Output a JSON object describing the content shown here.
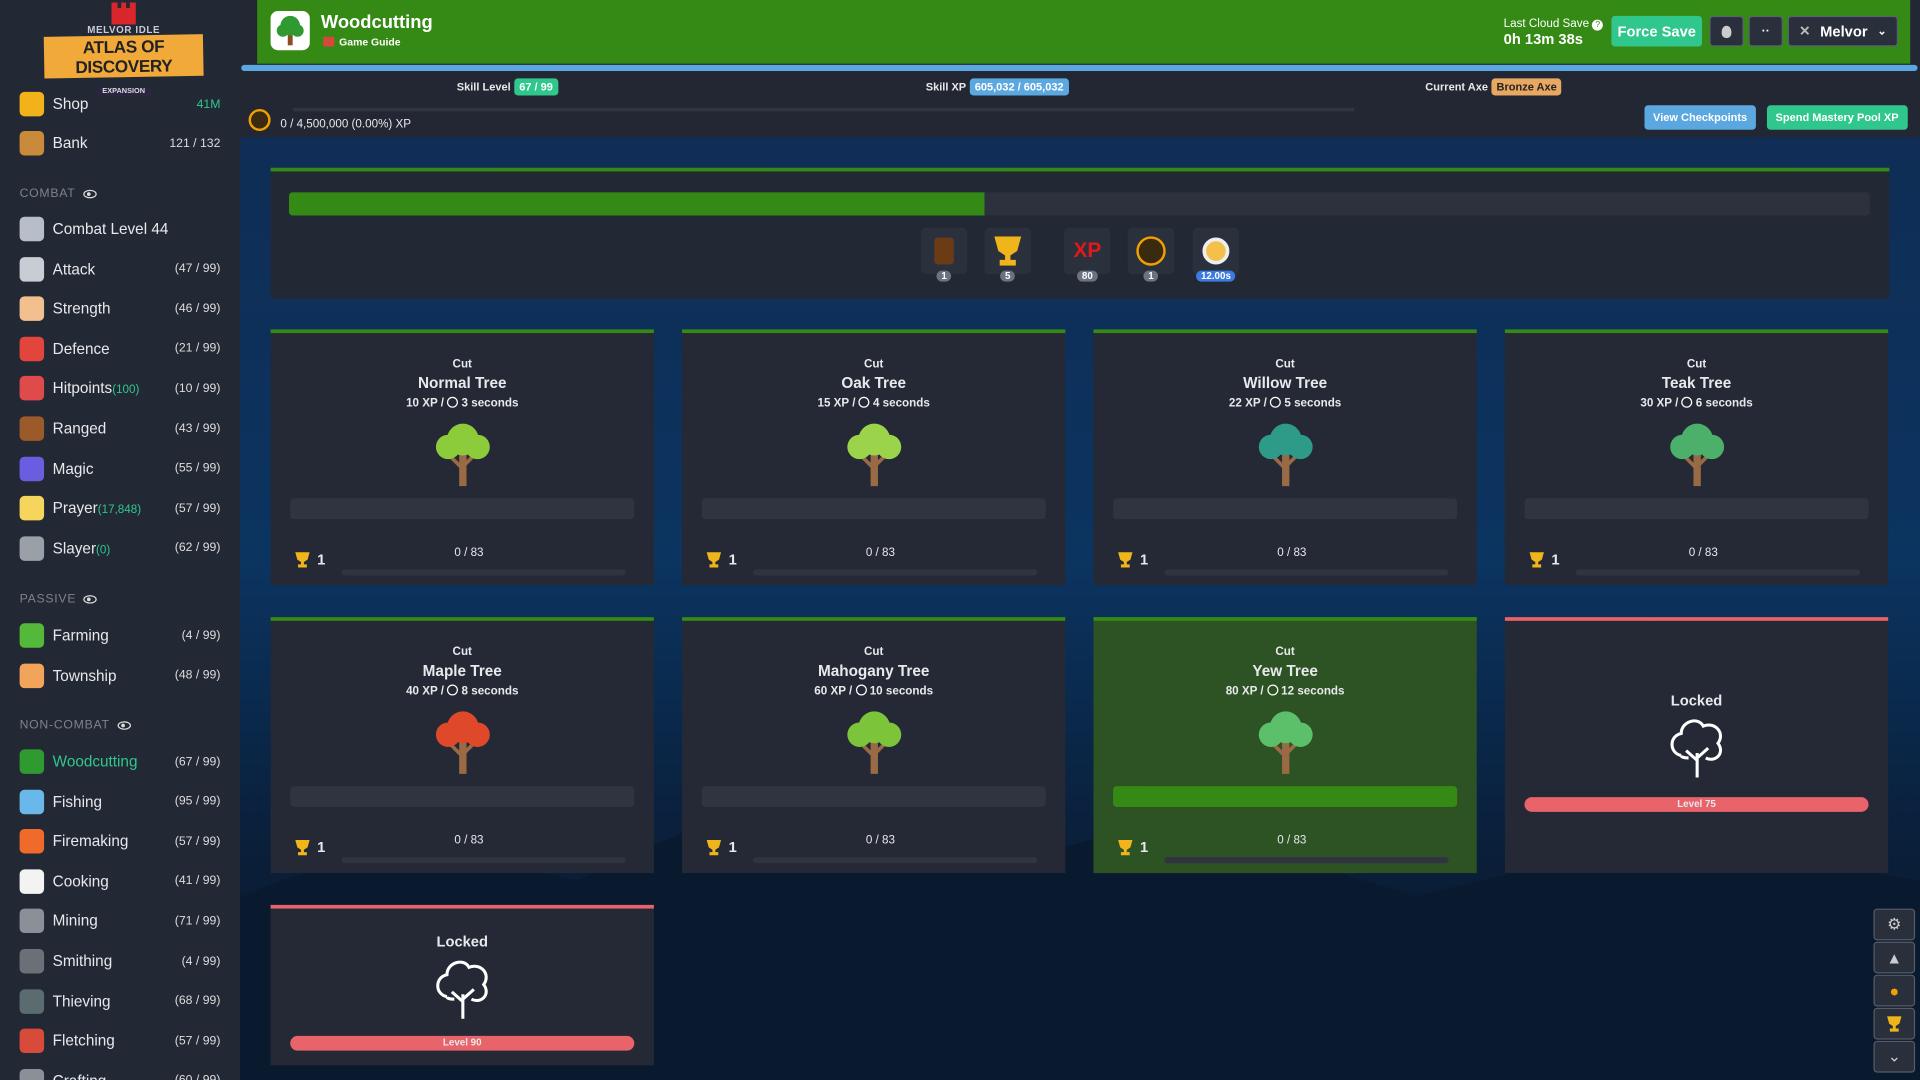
{
  "logo": {
    "top": "MELVOR IDLE",
    "main": "ATLAS OF DISCOVERY",
    "sub": "EXPANSION"
  },
  "sidebar": {
    "top_items": [
      {
        "label": "Shop",
        "value": "41M",
        "icon": "coin-icon",
        "color": "#f3b21a"
      },
      {
        "label": "Bank",
        "value": "121 / 132",
        "icon": "chest-icon",
        "color": "#c98a3b"
      }
    ],
    "sections": [
      {
        "title": "COMBAT",
        "items": [
          {
            "label": "Combat Level 44",
            "level": "",
            "icon": "crossed-swords-icon",
            "color": "#b8bec8"
          },
          {
            "label": "Attack",
            "level": "(47 / 99)",
            "icon": "sword-icon",
            "color": "#c8ccd4"
          },
          {
            "label": "Strength",
            "level": "(46 / 99)",
            "icon": "flexed-arm-icon",
            "color": "#f2c08f"
          },
          {
            "label": "Defence",
            "level": "(21 / 99)",
            "icon": "shield-icon",
            "color": "#e2453b"
          },
          {
            "label": "Hitpoints",
            "extra": "(100)",
            "level": "(10 / 99)",
            "icon": "heart-icon",
            "color": "#df4a4a"
          },
          {
            "label": "Ranged",
            "level": "(43 / 99)",
            "icon": "bow-icon",
            "color": "#9a5a2a"
          },
          {
            "label": "Magic",
            "level": "(55 / 99)",
            "icon": "wizard-hat-icon",
            "color": "#6a5ee0"
          },
          {
            "label": "Prayer",
            "extra": "(17,848)",
            "level": "(57 / 99)",
            "icon": "sparkle-icon",
            "color": "#f6d55c"
          },
          {
            "label": "Slayer",
            "extra": "(0)",
            "level": "(62 / 99)",
            "icon": "sword-in-stone-icon",
            "color": "#9aa0a8"
          }
        ]
      },
      {
        "title": "PASSIVE",
        "items": [
          {
            "label": "Farming",
            "level": "(4 / 99)",
            "icon": "sprout-icon",
            "color": "#54b93a"
          },
          {
            "label": "Township",
            "level": "(48 / 99)",
            "icon": "house-hands-icon",
            "color": "#f2a55a"
          }
        ]
      },
      {
        "title": "NON-COMBAT",
        "items": [
          {
            "label": "Woodcutting",
            "level": "(67 / 99)",
            "icon": "tree-icon",
            "color": "#2f9a2f",
            "active": true
          },
          {
            "label": "Fishing",
            "level": "(95 / 99)",
            "icon": "fish-icon",
            "color": "#6ab8ea"
          },
          {
            "label": "Firemaking",
            "level": "(57 / 99)",
            "icon": "campfire-icon",
            "color": "#f06a2a"
          },
          {
            "label": "Cooking",
            "level": "(41 / 99)",
            "icon": "chef-hat-icon",
            "color": "#f3f3f3"
          },
          {
            "label": "Mining",
            "level": "(71 / 99)",
            "icon": "pickaxe-icon",
            "color": "#8a8f98"
          },
          {
            "label": "Smithing",
            "level": "(4 / 99)",
            "icon": "anvil-icon",
            "color": "#6b7078"
          },
          {
            "label": "Thieving",
            "level": "(68 / 99)",
            "icon": "thief-icon",
            "color": "#5a6c70"
          },
          {
            "label": "Fletching",
            "level": "(57 / 99)",
            "icon": "arrows-icon",
            "color": "#d84a3a"
          },
          {
            "label": "Crafting",
            "level": "(60 / 99)",
            "icon": "hammer-icon",
            "color": "#8a8f98"
          }
        ]
      }
    ]
  },
  "header": {
    "title": "Woodcutting",
    "guide": "Game Guide",
    "cloud_label": "Last Cloud Save",
    "cloud_time": "0h 13m 38s",
    "force_save": "Force Save",
    "user": "Melvor",
    "colors": {
      "header": "#348a14",
      "accent": "#30c78d"
    }
  },
  "stats": {
    "skill_level_label": "Skill Level",
    "skill_level": "67 / 99",
    "skill_xp_label": "Skill XP",
    "skill_xp": "605,032 / 605,032",
    "axe_label": "Current Axe",
    "axe": "Bronze Axe",
    "mastery_pool": "0 / 4,500,000 (0.00%) XP",
    "view_checkpoints": "View Checkpoints",
    "spend_mastery": "Spend Mastery Pool XP"
  },
  "action_panel": {
    "progress_percent": 44,
    "icons": [
      {
        "icon": "log-icon",
        "value": "1"
      },
      {
        "icon": "trophy-icon",
        "value": "5"
      },
      {
        "icon": "xp-icon",
        "label": "XP",
        "value": "80"
      },
      {
        "icon": "mastery-icon",
        "value": "1"
      },
      {
        "icon": "stopwatch-icon",
        "value": "12.00s"
      }
    ]
  },
  "trees": [
    {
      "verb": "Cut",
      "name": "Normal Tree",
      "xp": "10 XP /",
      "time": "3 seconds",
      "mastery": "1",
      "progress": "0 / 83",
      "color": "#8ccb3a"
    },
    {
      "verb": "Cut",
      "name": "Oak Tree",
      "xp": "15 XP /",
      "time": "4 seconds",
      "mastery": "1",
      "progress": "0 / 83",
      "color": "#9bd44a"
    },
    {
      "verb": "Cut",
      "name": "Willow Tree",
      "xp": "22 XP /",
      "time": "5 seconds",
      "mastery": "1",
      "progress": "0 / 83",
      "color": "#2e9a88"
    },
    {
      "verb": "Cut",
      "name": "Teak Tree",
      "xp": "30 XP /",
      "time": "6 seconds",
      "mastery": "1",
      "progress": "0 / 83",
      "color": "#4caf6a"
    },
    {
      "verb": "Cut",
      "name": "Maple Tree",
      "xp": "40 XP /",
      "time": "8 seconds",
      "mastery": "1",
      "progress": "0 / 83",
      "color": "#e0482a"
    },
    {
      "verb": "Cut",
      "name": "Mahogany Tree",
      "xp": "60 XP /",
      "time": "10 seconds",
      "mastery": "1",
      "progress": "0 / 83",
      "color": "#7cc43a"
    },
    {
      "verb": "Cut",
      "name": "Yew Tree",
      "xp": "80 XP /",
      "time": "12 seconds",
      "mastery": "1",
      "progress": "0 / 83",
      "color": "#5cbf6a",
      "selected": true
    },
    {
      "locked": true,
      "title": "Locked",
      "level": "Level 75"
    },
    {
      "locked": true,
      "title": "Locked",
      "level": "Level 90"
    }
  ]
}
